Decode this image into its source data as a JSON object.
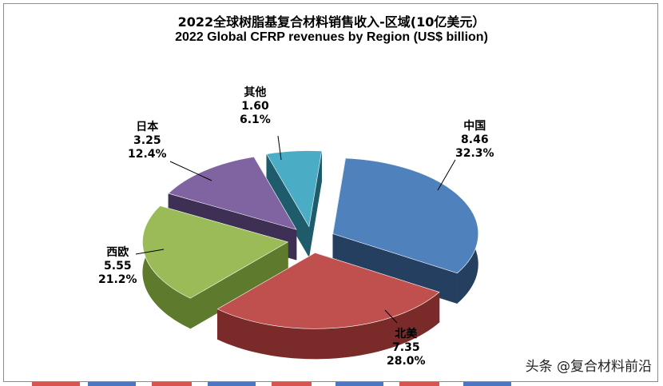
{
  "chart_data": {
    "type": "pie",
    "title": "2022全球树脂基复合材料销售收入-区域(10亿美元）",
    "subtitle": "2022 Global CFRP revenues by Region (US$ billion)",
    "slices": [
      {
        "label": "中国",
        "value": 8.46,
        "percent": "32.3%",
        "value_text": "8.46",
        "color": "#4f81bd",
        "side": "#243f60"
      },
      {
        "label": "北美",
        "value": 7.35,
        "percent": "28.0%",
        "value_text": "7.35",
        "color": "#c0504d",
        "side": "#7a2a28"
      },
      {
        "label": "西欧",
        "value": 5.55,
        "percent": "21.2%",
        "value_text": "5.55",
        "color": "#9bbb59",
        "side": "#5e7a2c"
      },
      {
        "label": "日本",
        "value": 3.25,
        "percent": "12.4%",
        "value_text": "3.25",
        "color": "#8064a2",
        "side": "#3e2f55"
      },
      {
        "label": "其他",
        "value": 1.6,
        "percent": "6.1%",
        "value_text": "1.60",
        "color": "#4bacc6",
        "side": "#1f5c6b"
      }
    ]
  },
  "watermark": "头条 @复合材料前沿"
}
